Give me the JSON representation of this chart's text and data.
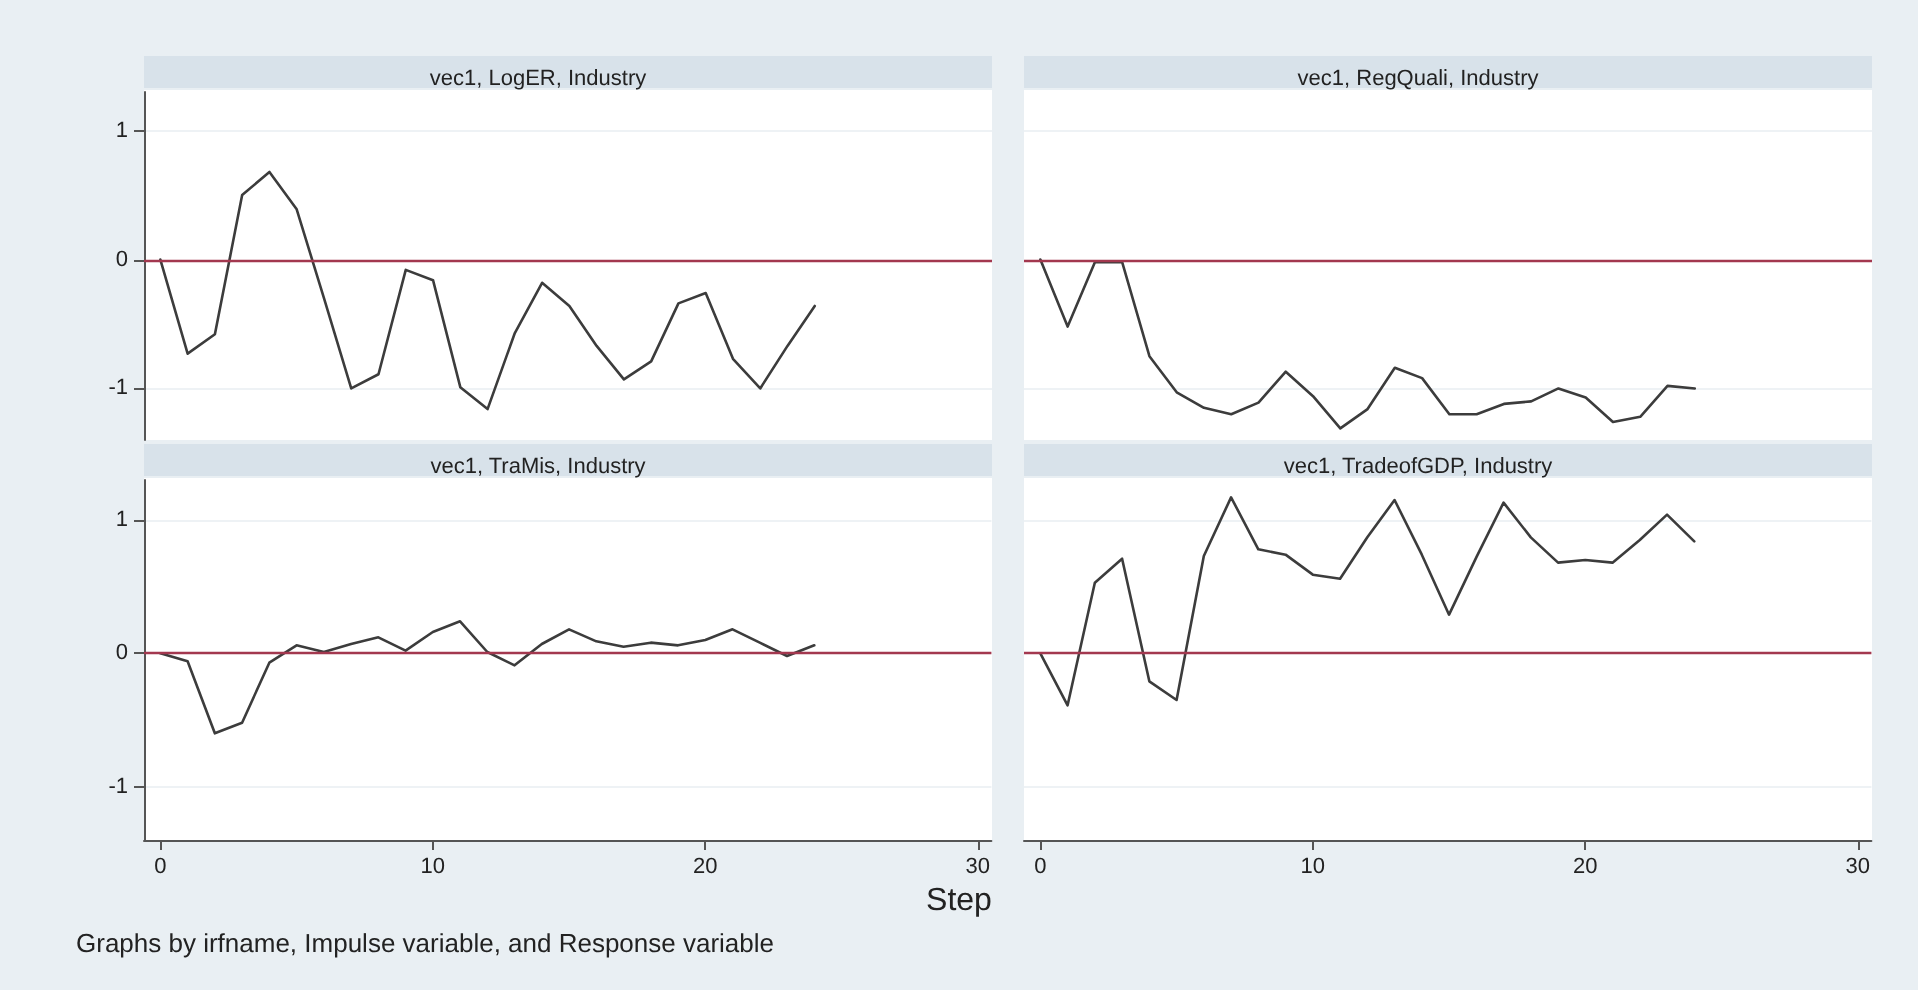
{
  "chart_data": [
    {
      "type": "line",
      "title": "vec1, LogER, Industry",
      "x": [
        0,
        1,
        2,
        3,
        4,
        5,
        6,
        7,
        8,
        9,
        10,
        11,
        12,
        13,
        14,
        15,
        16,
        17,
        18,
        19,
        20,
        21,
        22,
        23,
        24
      ],
      "series": [
        {
          "color": "#3c3c3c",
          "values": [
            0,
            -0.73,
            -0.58,
            0.5,
            0.68,
            0.39,
            -0.3,
            -1.0,
            -0.89,
            -0.08,
            -0.16,
            -0.99,
            -1.16,
            -0.57,
            -0.18,
            -0.36,
            -0.67,
            -0.93,
            -0.79,
            -0.34,
            -0.26,
            -0.77,
            -1.0,
            -0.67,
            -0.36
          ]
        }
      ],
      "xlim": [
        -0.6,
        30.5
      ],
      "xticks": [
        0,
        10,
        20,
        30
      ],
      "ylim": [
        -1.4,
        1.3
      ],
      "yticks": [
        -1,
        0,
        1
      ],
      "tick_labels": "y",
      "grid": "y",
      "ref_lines": [
        {
          "axis": "y",
          "value": 0,
          "color": "#a3384f"
        }
      ]
    },
    {
      "type": "line",
      "title": "vec1, RegQuali, Industry",
      "x": [
        0,
        1,
        2,
        3,
        4,
        5,
        6,
        7,
        8,
        9,
        10,
        11,
        12,
        13,
        14,
        15,
        16,
        17,
        18,
        19,
        20,
        21,
        22,
        23,
        24
      ],
      "series": [
        {
          "color": "#3c3c3c",
          "values": [
            0,
            -0.52,
            -0.02,
            -0.02,
            -0.75,
            -1.03,
            -1.15,
            -1.2,
            -1.11,
            -0.87,
            -1.06,
            -1.31,
            -1.16,
            -0.84,
            -0.92,
            -1.2,
            -1.2,
            -1.12,
            -1.1,
            -1.0,
            -1.07,
            -1.26,
            -1.22,
            -0.98,
            -1.0
          ]
        }
      ],
      "xlim": [
        -0.6,
        30.5
      ],
      "xticks": [
        0,
        10,
        20,
        30
      ],
      "ylim": [
        -1.4,
        1.3
      ],
      "yticks": [
        -1,
        0,
        1
      ],
      "tick_labels": false,
      "grid": "y",
      "ref_lines": [
        {
          "axis": "y",
          "value": 0,
          "color": "#a3384f"
        }
      ]
    },
    {
      "type": "line",
      "title": "vec1, TraMis, Industry",
      "xlabel": "Step",
      "annotations": [
        "Graphs by irfname, Impulse variable, and Response variable"
      ],
      "x": [
        0,
        1,
        2,
        3,
        4,
        5,
        6,
        7,
        8,
        9,
        10,
        11,
        12,
        13,
        14,
        15,
        16,
        17,
        18,
        19,
        20,
        21,
        22,
        23,
        24
      ],
      "series": [
        {
          "color": "#3c3c3c",
          "values": [
            0,
            -0.06,
            -0.6,
            -0.52,
            -0.07,
            0.06,
            0.01,
            0.07,
            0.12,
            0.02,
            0.16,
            0.24,
            0.01,
            -0.09,
            0.07,
            0.18,
            0.09,
            0.05,
            0.08,
            0.06,
            0.1,
            0.18,
            0.08,
            -0.02,
            0.06
          ]
        }
      ],
      "xlim": [
        -0.6,
        30.5
      ],
      "xticks": [
        0,
        10,
        20,
        30
      ],
      "ylim": [
        -1.4,
        1.3
      ],
      "yticks": [
        -1,
        0,
        1
      ],
      "grid": "y",
      "ref_lines": [
        {
          "axis": "y",
          "value": 0,
          "color": "#a3384f"
        }
      ]
    },
    {
      "type": "line",
      "title": "vec1, TradeofGDP, Industry",
      "x": [
        0,
        1,
        2,
        3,
        4,
        5,
        6,
        7,
        8,
        9,
        10,
        11,
        12,
        13,
        14,
        15,
        16,
        17,
        18,
        19,
        20,
        21,
        22,
        23,
        24
      ],
      "series": [
        {
          "color": "#3c3c3c",
          "values": [
            0,
            -0.39,
            0.53,
            0.71,
            -0.21,
            -0.35,
            0.73,
            1.17,
            0.78,
            0.74,
            0.59,
            0.56,
            0.87,
            1.15,
            0.74,
            0.29,
            0.72,
            1.13,
            0.87,
            0.68,
            0.7,
            0.68,
            0.85,
            1.04,
            0.84
          ]
        }
      ],
      "xlim": [
        -0.6,
        30.5
      ],
      "xticks": [
        0,
        10,
        20,
        30
      ],
      "ylim": [
        -1.4,
        1.3
      ],
      "yticks": [
        -1,
        0,
        1
      ],
      "tick_labels": "x",
      "grid": "y",
      "ref_lines": [
        {
          "axis": "y",
          "value": 0,
          "color": "#a3384f"
        }
      ]
    }
  ]
}
